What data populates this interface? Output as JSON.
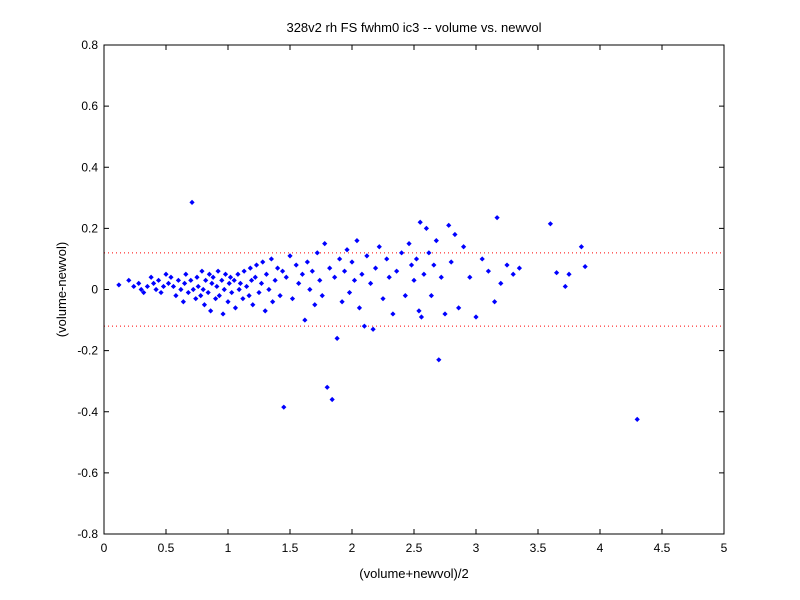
{
  "chart_data": {
    "type": "scatter",
    "title": "328v2 rh FS fwhm0 ic3 -- volume vs. newvol",
    "xlabel": "(volume+newvol)/2",
    "ylabel": "(volume-newvol)",
    "xlim": [
      0,
      5
    ],
    "ylim": [
      -0.8,
      0.8
    ],
    "xticks": [
      "0",
      "0.5",
      "1",
      "1.5",
      "2",
      "2.5",
      "3",
      "3.5",
      "4",
      "4.5",
      "5"
    ],
    "yticks": [
      "-0.8",
      "-0.6",
      "-0.4",
      "-0.2",
      "0",
      "0.2",
      "0.4",
      "0.6",
      "0.8"
    ],
    "grid": false,
    "marker_color": "#0000ff",
    "reference_line_color": "#ff0000",
    "reference_lines_y": [
      0.12,
      -0.12
    ],
    "series": [
      {
        "points": [
          [
            0.12,
            0.015
          ],
          [
            0.2,
            0.03
          ],
          [
            0.24,
            0.01
          ],
          [
            0.28,
            0.02
          ],
          [
            0.3,
            0.0
          ],
          [
            0.32,
            -0.01
          ],
          [
            0.35,
            0.01
          ],
          [
            0.38,
            0.04
          ],
          [
            0.4,
            0.02
          ],
          [
            0.42,
            0.0
          ],
          [
            0.44,
            0.03
          ],
          [
            0.46,
            -0.01
          ],
          [
            0.48,
            0.01
          ],
          [
            0.5,
            0.05
          ],
          [
            0.52,
            0.02
          ],
          [
            0.54,
            0.04
          ],
          [
            0.56,
            0.01
          ],
          [
            0.58,
            -0.02
          ],
          [
            0.6,
            0.03
          ],
          [
            0.62,
            0.0
          ],
          [
            0.64,
            -0.04
          ],
          [
            0.65,
            0.02
          ],
          [
            0.66,
            0.05
          ],
          [
            0.68,
            -0.01
          ],
          [
            0.7,
            0.03
          ],
          [
            0.71,
            0.285
          ],
          [
            0.72,
            0.0
          ],
          [
            0.74,
            -0.03
          ],
          [
            0.75,
            0.04
          ],
          [
            0.76,
            0.01
          ],
          [
            0.78,
            -0.02
          ],
          [
            0.79,
            0.06
          ],
          [
            0.8,
            0.0
          ],
          [
            0.81,
            -0.05
          ],
          [
            0.82,
            0.03
          ],
          [
            0.84,
            -0.01
          ],
          [
            0.85,
            0.05
          ],
          [
            0.86,
            -0.07
          ],
          [
            0.87,
            0.02
          ],
          [
            0.88,
            0.04
          ],
          [
            0.9,
            -0.03
          ],
          [
            0.91,
            0.01
          ],
          [
            0.92,
            0.06
          ],
          [
            0.93,
            -0.02
          ],
          [
            0.95,
            0.03
          ],
          [
            0.96,
            -0.08
          ],
          [
            0.97,
            0.0
          ],
          [
            0.98,
            0.05
          ],
          [
            1.0,
            -0.04
          ],
          [
            1.01,
            0.02
          ],
          [
            1.02,
            0.04
          ],
          [
            1.03,
            -0.01
          ],
          [
            1.05,
            0.03
          ],
          [
            1.06,
            -0.06
          ],
          [
            1.08,
            0.05
          ],
          [
            1.09,
            0.0
          ],
          [
            1.1,
            0.02
          ],
          [
            1.12,
            -0.03
          ],
          [
            1.13,
            0.06
          ],
          [
            1.15,
            0.01
          ],
          [
            1.17,
            -0.02
          ],
          [
            1.18,
            0.07
          ],
          [
            1.19,
            0.03
          ],
          [
            1.2,
            -0.05
          ],
          [
            1.22,
            0.04
          ],
          [
            1.23,
            0.08
          ],
          [
            1.25,
            -0.01
          ],
          [
            1.27,
            0.02
          ],
          [
            1.28,
            0.09
          ],
          [
            1.3,
            -0.07
          ],
          [
            1.31,
            0.05
          ],
          [
            1.33,
            0.0
          ],
          [
            1.35,
            0.1
          ],
          [
            1.36,
            -0.04
          ],
          [
            1.38,
            0.03
          ],
          [
            1.4,
            0.07
          ],
          [
            1.42,
            -0.02
          ],
          [
            1.44,
            0.06
          ],
          [
            1.45,
            -0.385
          ],
          [
            1.47,
            0.04
          ],
          [
            1.5,
            0.11
          ],
          [
            1.52,
            -0.03
          ],
          [
            1.55,
            0.08
          ],
          [
            1.57,
            0.02
          ],
          [
            1.6,
            0.05
          ],
          [
            1.62,
            -0.1
          ],
          [
            1.64,
            0.09
          ],
          [
            1.66,
            0.0
          ],
          [
            1.68,
            0.06
          ],
          [
            1.7,
            -0.05
          ],
          [
            1.72,
            0.12
          ],
          [
            1.74,
            0.03
          ],
          [
            1.76,
            -0.02
          ],
          [
            1.78,
            0.15
          ],
          [
            1.8,
            -0.32
          ],
          [
            1.82,
            0.07
          ],
          [
            1.84,
            -0.36
          ],
          [
            1.86,
            0.04
          ],
          [
            1.88,
            -0.16
          ],
          [
            1.9,
            0.1
          ],
          [
            1.92,
            -0.04
          ],
          [
            1.94,
            0.06
          ],
          [
            1.96,
            0.13
          ],
          [
            1.98,
            -0.01
          ],
          [
            2.0,
            0.09
          ],
          [
            2.02,
            0.03
          ],
          [
            2.04,
            0.16
          ],
          [
            2.06,
            -0.06
          ],
          [
            2.08,
            0.05
          ],
          [
            2.1,
            -0.12
          ],
          [
            2.12,
            0.11
          ],
          [
            2.15,
            0.02
          ],
          [
            2.17,
            -0.13
          ],
          [
            2.19,
            0.07
          ],
          [
            2.22,
            0.14
          ],
          [
            2.25,
            -0.03
          ],
          [
            2.28,
            0.1
          ],
          [
            2.3,
            0.04
          ],
          [
            2.33,
            -0.08
          ],
          [
            2.36,
            0.06
          ],
          [
            2.4,
            0.12
          ],
          [
            2.43,
            -0.02
          ],
          [
            2.46,
            0.15
          ],
          [
            2.48,
            0.08
          ],
          [
            2.5,
            0.03
          ],
          [
            2.52,
            0.1
          ],
          [
            2.54,
            -0.07
          ],
          [
            2.55,
            0.22
          ],
          [
            2.56,
            -0.09
          ],
          [
            2.58,
            0.05
          ],
          [
            2.6,
            0.2
          ],
          [
            2.62,
            0.12
          ],
          [
            2.64,
            -0.02
          ],
          [
            2.66,
            0.08
          ],
          [
            2.68,
            0.16
          ],
          [
            2.7,
            -0.23
          ],
          [
            2.72,
            0.04
          ],
          [
            2.75,
            -0.08
          ],
          [
            2.78,
            0.21
          ],
          [
            2.8,
            0.09
          ],
          [
            2.83,
            0.18
          ],
          [
            2.86,
            -0.06
          ],
          [
            2.9,
            0.14
          ],
          [
            2.95,
            0.04
          ],
          [
            3.0,
            -0.09
          ],
          [
            3.05,
            0.1
          ],
          [
            3.1,
            0.06
          ],
          [
            3.15,
            -0.04
          ],
          [
            3.17,
            0.235
          ],
          [
            3.2,
            0.02
          ],
          [
            3.25,
            0.08
          ],
          [
            3.3,
            0.05
          ],
          [
            3.35,
            0.07
          ],
          [
            3.6,
            0.215
          ],
          [
            3.65,
            0.055
          ],
          [
            3.72,
            0.01
          ],
          [
            3.75,
            0.05
          ],
          [
            3.85,
            0.14
          ],
          [
            3.88,
            0.075
          ],
          [
            4.3,
            -0.425
          ]
        ]
      }
    ]
  }
}
